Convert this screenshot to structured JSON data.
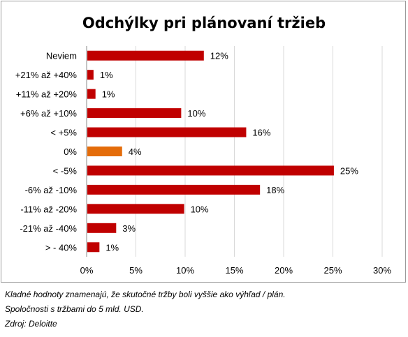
{
  "chart_data": {
    "type": "bar",
    "orientation": "horizontal",
    "title": "Odchýlky pri plánovaní tržieb",
    "categories": [
      "Neviem",
      "+21% až +40%",
      "+11% až +20%",
      "+6% až +10%",
      "< +5%",
      "0%",
      "< -5%",
      "-6% až -10%",
      "-11% až -20%",
      "-21% až -40%",
      "> - 40%"
    ],
    "values": [
      12,
      1,
      1,
      10,
      16,
      4,
      25,
      18,
      10,
      3,
      1
    ],
    "data_labels": [
      "12%",
      "1%",
      "1%",
      "10%",
      "16%",
      "4%",
      "25%",
      "18%",
      "10%",
      "3%",
      "1%"
    ],
    "bar_value_precise": [
      11.9,
      0.7,
      0.9,
      9.6,
      16.2,
      3.6,
      25.1,
      17.6,
      9.9,
      3.0,
      1.3
    ],
    "xlim": [
      0,
      30
    ],
    "x_ticks": [
      0,
      5,
      10,
      15,
      20,
      25,
      30
    ],
    "x_tick_labels": [
      "0%",
      "5%",
      "10%",
      "15%",
      "20%",
      "25%",
      "30%"
    ],
    "grid": "vertical",
    "legend": "none",
    "colors": {
      "bar": "#c00000",
      "highlight": "#e46c0a",
      "highlight_index": 5,
      "grid": "#d9d9d9",
      "axis": "#888888"
    }
  },
  "notes": [
    "Kladné hodnoty znamenajú, že skutočné tržby boli vyššie ako výhľad / plán.",
    "Spoločnosti s tržbami do 5 mld. USD.",
    "Zdroj: Deloitte"
  ]
}
